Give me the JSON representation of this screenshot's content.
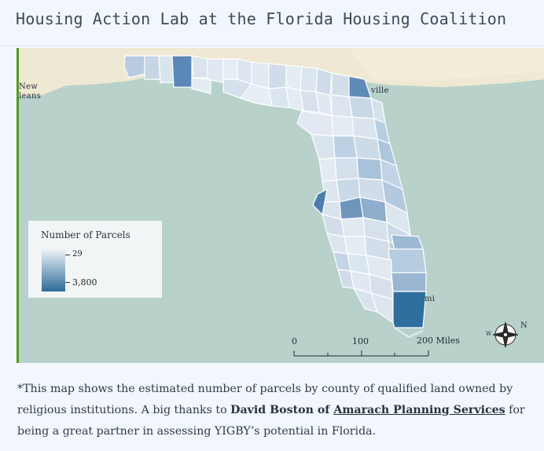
{
  "header": {
    "title": "Housing Action Lab at the Florida Housing Coalition"
  },
  "map": {
    "labels": {
      "new_orleans_line1": "New",
      "new_orleans_line2": "leans",
      "jacksonville": "ville",
      "miami": "mi"
    },
    "legend": {
      "title": "Number of Parcels",
      "min": "29",
      "max": "3,800",
      "color_low": "#eef3f8",
      "color_high": "#2d6c99"
    },
    "scale": {
      "label_0": "0",
      "label_100": "100",
      "label_200": "200 Miles"
    },
    "compass": {
      "n": "N",
      "e": "E",
      "w": "W"
    },
    "colors": {
      "water": "#b9d2cc",
      "land": "#efe8d2",
      "county_border": "#ffffff"
    }
  },
  "caption": {
    "part1": "*This map shows the estimated number of parcels by county of qualified land owned by religious institutions. A big thanks to ",
    "bold": "David Boston of ",
    "link": "Amarach Planning Services",
    "part2": " for being a great partner in assessing YIGBY’s potential in Florida."
  }
}
